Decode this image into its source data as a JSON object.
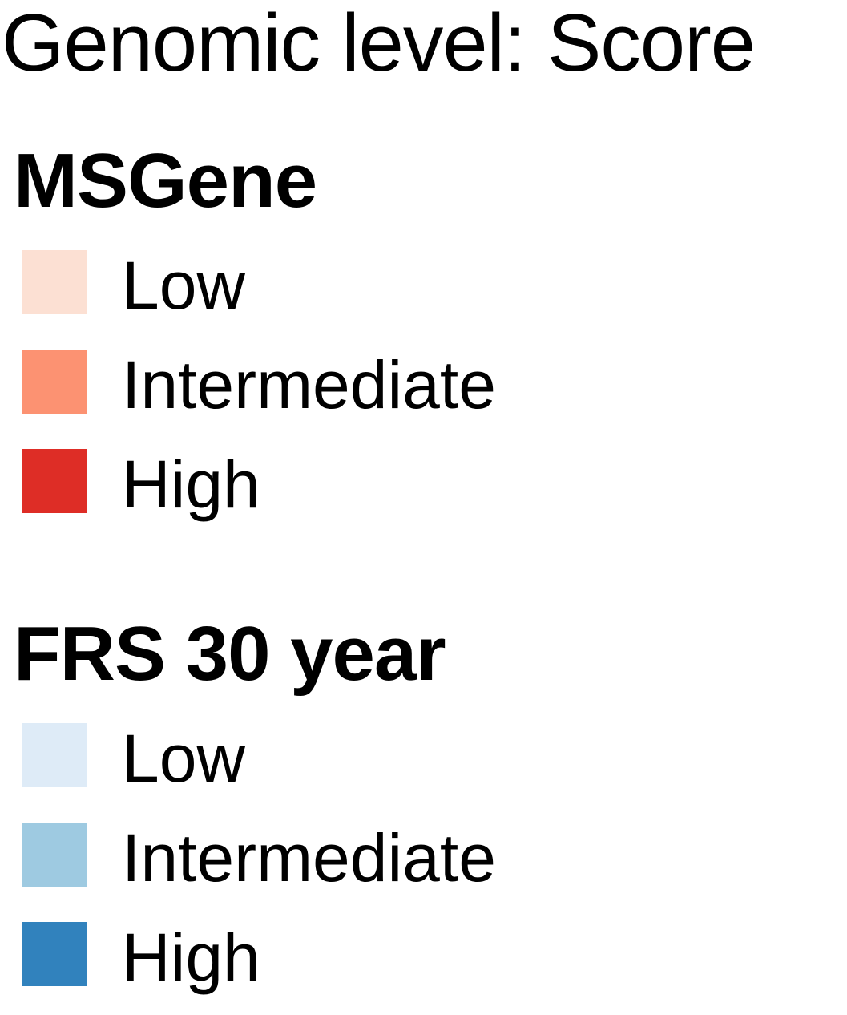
{
  "chart_data": {
    "type": "legend",
    "title": "Genomic level: Score",
    "groups": [
      {
        "name": "MSGene",
        "items": [
          {
            "label": "Low",
            "color": "#fce0d3"
          },
          {
            "label": "Intermediate",
            "color": "#fc9272"
          },
          {
            "label": "High",
            "color": "#de2d26"
          }
        ]
      },
      {
        "name": "FRS 30 year",
        "items": [
          {
            "label": "Low",
            "color": "#deebf7"
          },
          {
            "label": "Intermediate",
            "color": "#9ecae1"
          },
          {
            "label": "High",
            "color": "#3182bd"
          }
        ]
      }
    ]
  }
}
